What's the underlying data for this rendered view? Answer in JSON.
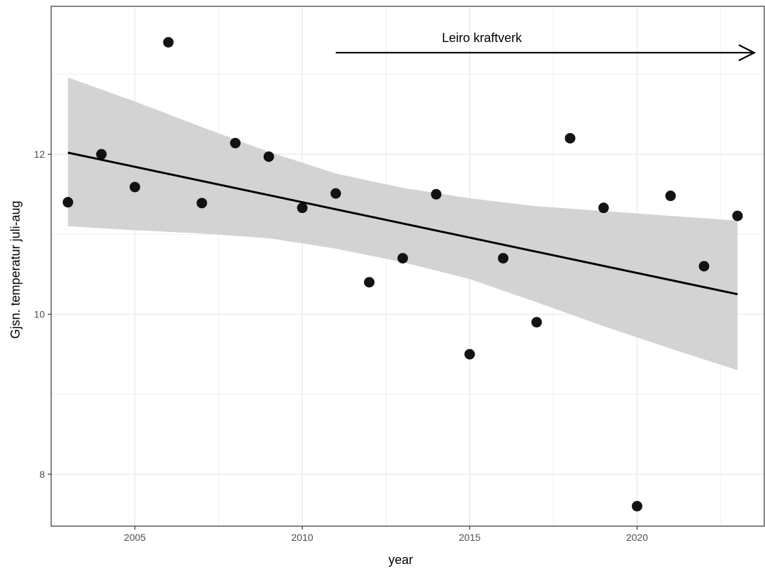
{
  "chart_data": {
    "type": "scatter",
    "title": "",
    "xlabel": "year",
    "ylabel": "Gjsn. temperatur juli-aug",
    "xlim": [
      2002.5,
      2023.8
    ],
    "ylim": [
      7.35,
      13.85
    ],
    "x_ticks": [
      2005,
      2010,
      2015,
      2020
    ],
    "y_ticks": [
      8,
      10,
      12
    ],
    "grid": true,
    "legend": "none",
    "points": [
      {
        "x": 2003,
        "y": 11.4
      },
      {
        "x": 2004,
        "y": 12.0
      },
      {
        "x": 2005,
        "y": 11.59
      },
      {
        "x": 2006,
        "y": 13.4
      },
      {
        "x": 2007,
        "y": 11.39
      },
      {
        "x": 2008,
        "y": 12.14
      },
      {
        "x": 2009,
        "y": 11.97
      },
      {
        "x": 2010,
        "y": 11.33
      },
      {
        "x": 2011,
        "y": 11.51
      },
      {
        "x": 2012,
        "y": 10.4
      },
      {
        "x": 2013,
        "y": 10.7
      },
      {
        "x": 2014,
        "y": 11.5
      },
      {
        "x": 2015,
        "y": 9.5
      },
      {
        "x": 2016,
        "y": 10.7
      },
      {
        "x": 2017,
        "y": 9.9
      },
      {
        "x": 2018,
        "y": 12.2
      },
      {
        "x": 2019,
        "y": 11.33
      },
      {
        "x": 2020,
        "y": 7.6
      },
      {
        "x": 2021,
        "y": 11.48
      },
      {
        "x": 2022,
        "y": 10.6
      },
      {
        "x": 2023,
        "y": 11.23
      }
    ],
    "trend_line": {
      "x": [
        2003,
        2023
      ],
      "y": [
        12.02,
        10.25
      ]
    },
    "confidence_band": {
      "x": [
        2003,
        2005,
        2007,
        2009,
        2011,
        2013,
        2015,
        2017,
        2019,
        2021,
        2023
      ],
      "lower": [
        11.1,
        11.05,
        11.01,
        10.95,
        10.82,
        10.65,
        10.44,
        10.15,
        9.85,
        9.57,
        9.3
      ],
      "upper": [
        12.96,
        12.66,
        12.34,
        12.03,
        11.76,
        11.58,
        11.45,
        11.35,
        11.29,
        11.23,
        11.17
      ]
    },
    "annotation": {
      "text": "Leiro kraftverk",
      "arrow_from_x": 2011,
      "arrow_to_x": 2023.5,
      "arrow_y": 13.27
    },
    "colors": {
      "point": "#000000",
      "line": "#000000",
      "band": "#d3d3d3",
      "grid": "#ebebeb",
      "panel_border": "#333333"
    }
  }
}
